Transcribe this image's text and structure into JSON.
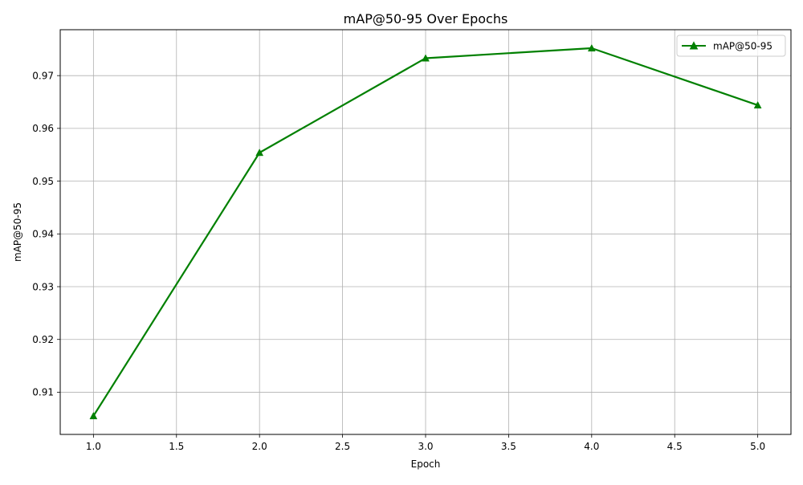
{
  "chart_data": {
    "type": "line",
    "title": "mAP@50-95 Over Epochs",
    "xlabel": "Epoch",
    "ylabel": "mAP@50-95",
    "x": [
      1,
      2,
      3,
      4,
      5
    ],
    "series": [
      {
        "name": "mAP@50-95",
        "values": [
          0.9055,
          0.9554,
          0.9733,
          0.9752,
          0.9644
        ],
        "color": "#008000",
        "marker": "triangle-up"
      }
    ],
    "xlim": [
      0.8,
      5.2
    ],
    "ylim": [
      0.902,
      0.9787
    ],
    "xticks": [
      1.0,
      1.5,
      2.0,
      2.5,
      3.0,
      3.5,
      4.0,
      4.5,
      5.0
    ],
    "xtick_labels": [
      "1.0",
      "1.5",
      "2.0",
      "2.5",
      "3.0",
      "3.5",
      "4.0",
      "4.5",
      "5.0"
    ],
    "yticks": [
      0.91,
      0.92,
      0.93,
      0.94,
      0.95,
      0.96,
      0.97
    ],
    "ytick_labels": [
      "0.91",
      "0.92",
      "0.93",
      "0.94",
      "0.95",
      "0.96",
      "0.97"
    ],
    "grid": true,
    "grid_color": "#b0b0b0",
    "legend_position": "top-right"
  }
}
